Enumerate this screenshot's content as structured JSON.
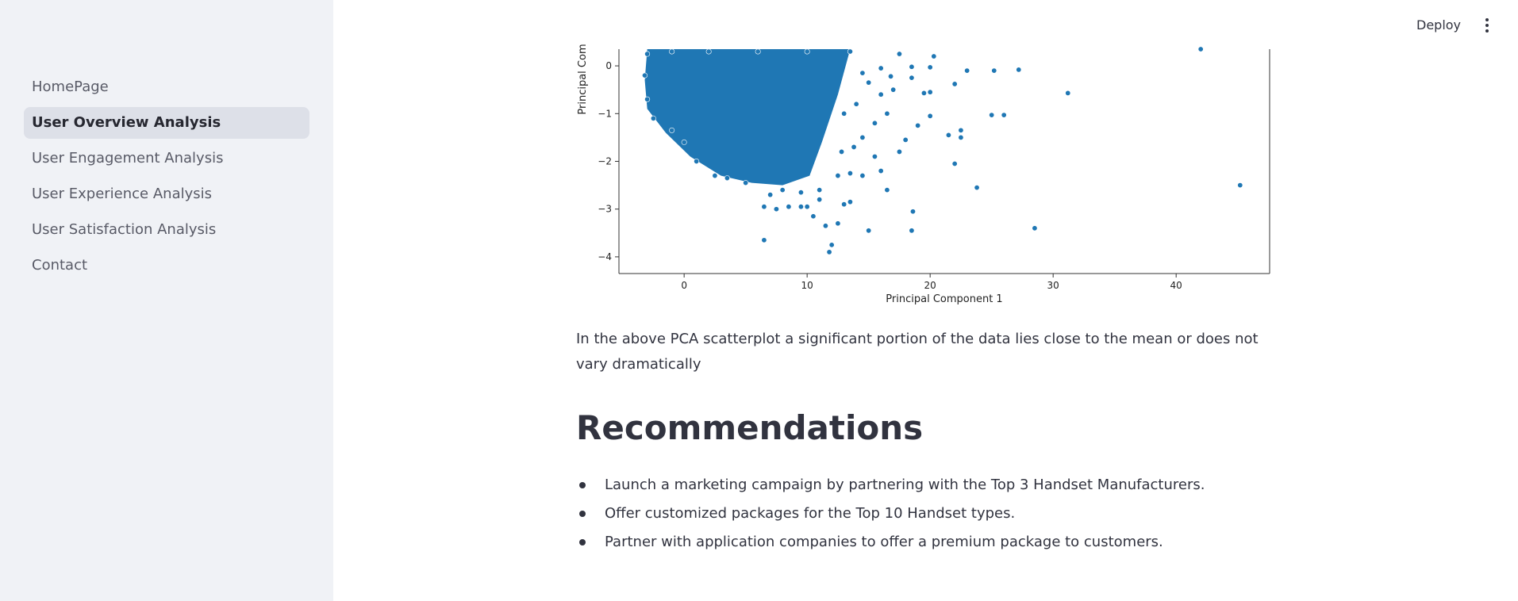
{
  "sidebar": {
    "items": [
      {
        "label": "HomePage",
        "active": false
      },
      {
        "label": "User Overview Analysis",
        "active": true
      },
      {
        "label": "User Engagement Analysis",
        "active": false
      },
      {
        "label": "User Experience Analysis",
        "active": false
      },
      {
        "label": "User Satisfaction Analysis",
        "active": false
      },
      {
        "label": "Contact",
        "active": false
      }
    ]
  },
  "header": {
    "deploy_label": "Deploy",
    "menu_icon": "kebab-menu-icon"
  },
  "main": {
    "caption": "In the above PCA scatterplot a significant portion of the data lies close to the mean or does not vary dramatically",
    "heading": "Recommendations",
    "recommendations": [
      "Launch a marketing campaign by partnering with the Top 3 Handset Manufacturers.",
      "Offer customized packages for the Top 10 Handset types.",
      "Partner with application companies to offer a premium package to customers."
    ]
  },
  "chart_data": {
    "type": "scatter",
    "xlabel": "Principal Component 1",
    "ylabel": "Principal Com",
    "xlim": [
      -5.3,
      47.6
    ],
    "ylim": [
      -4.35,
      0.35
    ],
    "xticks": [
      0,
      10,
      20,
      30,
      40
    ],
    "yticks": [
      0,
      -1,
      -2,
      -3,
      -4
    ],
    "color": "#1f77b4",
    "grid": false,
    "points": [
      [
        6.5,
        -3.65
      ],
      [
        11.8,
        -3.9
      ],
      [
        12.0,
        -3.75
      ],
      [
        11.5,
        -3.35
      ],
      [
        12.5,
        -3.3
      ],
      [
        13.5,
        -2.85
      ],
      [
        13.0,
        -2.9
      ],
      [
        15.0,
        -3.45
      ],
      [
        18.5,
        -3.45
      ],
      [
        18.6,
        -3.05
      ],
      [
        22.0,
        -2.05
      ],
      [
        23.8,
        -2.55
      ],
      [
        28.5,
        -3.4
      ],
      [
        45.2,
        -2.5
      ],
      [
        31.2,
        -0.57
      ],
      [
        42.0,
        0.35
      ],
      [
        27.2,
        -0.08
      ],
      [
        25.2,
        -0.1
      ],
      [
        23.0,
        -0.1
      ],
      [
        22.0,
        -0.38
      ],
      [
        25.0,
        -1.03
      ],
      [
        26.0,
        -1.03
      ],
      [
        22.5,
        -1.35
      ],
      [
        22.5,
        -1.5
      ],
      [
        21.5,
        -1.45
      ],
      [
        20.0,
        -1.05
      ],
      [
        20.0,
        -0.55
      ],
      [
        19.5,
        -0.57
      ],
      [
        18.5,
        -0.25
      ],
      [
        19.0,
        -1.25
      ],
      [
        18.0,
        -1.55
      ],
      [
        17.5,
        -1.8
      ],
      [
        16.5,
        -2.6
      ],
      [
        16.0,
        -2.2
      ],
      [
        20.0,
        -0.03
      ],
      [
        20.3,
        0.2
      ],
      [
        17.5,
        0.25
      ],
      [
        18.5,
        -0.02
      ],
      [
        14.5,
        -1.5
      ],
      [
        15.5,
        -1.2
      ],
      [
        16.5,
        -1.0
      ],
      [
        17.0,
        -0.5
      ],
      [
        16.0,
        -0.6
      ],
      [
        14.5,
        -2.3
      ],
      [
        13.5,
        -2.25
      ],
      [
        15.5,
        -1.9
      ],
      [
        10.5,
        -3.15
      ],
      [
        9.5,
        -2.95
      ],
      [
        8.5,
        -2.95
      ],
      [
        7.5,
        -3.0
      ],
      [
        6.5,
        -2.95
      ],
      [
        11.0,
        -2.8
      ],
      [
        10.0,
        -2.95
      ],
      [
        7.0,
        -2.7
      ],
      [
        16.8,
        -0.22
      ],
      [
        16.0,
        -0.05
      ],
      [
        14.5,
        -0.15
      ],
      [
        15.0,
        -0.35
      ],
      [
        14.0,
        -0.8
      ],
      [
        13.0,
        -1.0
      ],
      [
        12.8,
        -1.8
      ],
      [
        13.8,
        -1.7
      ],
      [
        12.5,
        -2.3
      ],
      [
        11.0,
        -2.6
      ],
      [
        9.5,
        -2.65
      ],
      [
        8.0,
        -2.6
      ],
      [
        5.0,
        -2.45
      ],
      [
        3.5,
        -2.35
      ],
      [
        2.5,
        -2.3
      ],
      [
        1.0,
        -2.0
      ],
      [
        0.0,
        -1.6
      ],
      [
        -1.0,
        -1.35
      ],
      [
        -2.5,
        -1.1
      ],
      [
        -3.0,
        -0.7
      ],
      [
        -3.2,
        -0.2
      ],
      [
        -3.0,
        0.25
      ],
      [
        -1.0,
        0.3
      ],
      [
        2.0,
        0.3
      ],
      [
        6.0,
        0.3
      ],
      [
        10.0,
        0.3
      ],
      [
        13.5,
        0.3
      ]
    ]
  }
}
